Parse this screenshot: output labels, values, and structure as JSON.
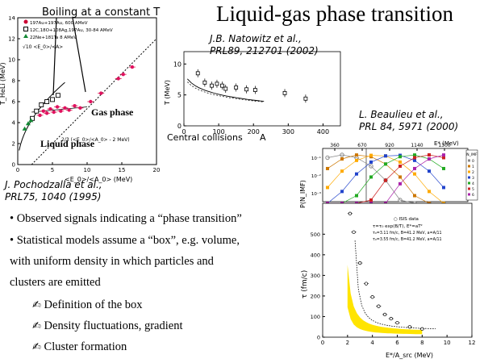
{
  "slide": {
    "title": "Liquid-gas phase transition",
    "boiling_label": "Boiling at a constant T",
    "gas_label": "Gas phase",
    "liquid_label": "Liquid phase",
    "central_label": "Central collisions",
    "bullets": [
      "• Observed signals indicating a “phase transition”",
      "• Statistical models assume a “box”, e.g. volume,",
      "with uniform density in which particles and",
      "clusters are emitted"
    ],
    "subpoints": [
      "Definition of the box",
      "Density fluctuations, gradient",
      "Cluster formation"
    ],
    "subpoint_glyph": "✍"
  },
  "citations": {
    "natowitz_line1": "J.B. Natowitz et al.,",
    "natowitz_line2": "PRL89, 212701 (2002)",
    "beaulieu_line1": "L. Beaulieu et al.,",
    "beaulieu_line2": "PRL 84, 5971 (2000)",
    "pochodzalla_line1": "J. Pochodzalla et al.,",
    "pochodzalla_line2": "PRL75, 1040 (1995)"
  },
  "chart_data": [
    {
      "type": "scatter",
      "name_ref": "caloric-curve",
      "xlabel": "<E_0>/<A_0> (MeV)",
      "ylabel": "T_HeLi (MeV)",
      "xlim": [
        0,
        20
      ],
      "ylim": [
        0,
        14
      ],
      "xticks": [
        "0",
        "5",
        "10",
        "15",
        "20"
      ],
      "yticks": [
        "0",
        "2",
        "4",
        "6",
        "8",
        "10",
        "12",
        "14"
      ],
      "legend": [
        "197Au+197Au, 600 AMeV",
        "12C,18O+108Ag,197Au, 30-84 AMeV",
        "22Ne+181Ta 8 AMeV"
      ],
      "formula_top": "√10 <E_0>/<A>",
      "formula_bottom": "2/3 (<E_0>/<A_0> - 2 MeV)",
      "red_points": [
        [
          3.2,
          4.7
        ],
        [
          3.7,
          5.1
        ],
        [
          4.2,
          4.9
        ],
        [
          4.7,
          5.3
        ],
        [
          5.2,
          5.0
        ],
        [
          5.7,
          5.5
        ],
        [
          6.2,
          5.1
        ],
        [
          6.8,
          5.4
        ],
        [
          7.4,
          5.2
        ],
        [
          8.2,
          5.6
        ],
        [
          9.0,
          5.4
        ],
        [
          10.5,
          6.0
        ],
        [
          12.0,
          6.8
        ],
        [
          14.5,
          8.2
        ],
        [
          15.2,
          8.6
        ],
        [
          16.5,
          9.3
        ]
      ],
      "open_points": [
        [
          2.1,
          4.4
        ],
        [
          2.7,
          5.1
        ],
        [
          3.4,
          5.7
        ],
        [
          4.2,
          6.0
        ],
        [
          5.0,
          6.2
        ],
        [
          5.8,
          6.6
        ]
      ],
      "green_points": [
        [
          1.0,
          3.4
        ],
        [
          1.5,
          3.9
        ],
        [
          1.9,
          4.2
        ]
      ]
    },
    {
      "type": "scatter",
      "name_ref": "natowitz-temperature",
      "xlabel": "A",
      "ylabel": "T (MeV)",
      "xlim": [
        0,
        450
      ],
      "ylim": [
        0,
        12
      ],
      "xticks": [
        "0",
        "100",
        "200",
        "300",
        "400"
      ],
      "yticks": [
        "0",
        "5",
        "10"
      ],
      "points": [
        [
          40,
          8.5
        ],
        [
          60,
          7.0
        ],
        [
          80,
          6.5
        ],
        [
          95,
          6.8
        ],
        [
          110,
          6.5
        ],
        [
          120,
          6.0
        ],
        [
          150,
          6.2
        ],
        [
          180,
          5.9
        ],
        [
          205,
          5.8
        ],
        [
          290,
          5.3
        ],
        [
          350,
          4.4
        ]
      ]
    },
    {
      "type": "line",
      "name_ref": "beaulieu-multiplicity",
      "xlabel": "E*/A_src (MeV)",
      "ylabel": "P(N_IMF)",
      "ylabel_bottom": "τ (fm/c)",
      "top_xlabel": "E* (MeV)",
      "top_ticks": [
        "360",
        "670",
        "920",
        "1140",
        "1300"
      ],
      "bottom_xticks": [
        "0",
        "2",
        "4",
        "6",
        "8",
        "10",
        "12"
      ],
      "tau_ticks": [
        "0",
        "100",
        "200",
        "300",
        "400",
        "500"
      ],
      "p_ticks": [
        "10⁻¹",
        "10⁻²",
        "10⁻³"
      ],
      "legend_header": "N_IMF",
      "legend_items": [
        "0",
        "1",
        "2",
        "3",
        "4",
        "5",
        "6"
      ],
      "annotation_lines": [
        "○ ISIS data",
        "τ=τ₀ exp(B/T), E*=aT²",
        "τ₀=3.11 fm/c, B=41.2 MeV, a=A/11",
        "τ₀=3.55 fm/c, B=41.2 MeV, a=A/11"
      ],
      "tau_points": [
        [
          2.2,
          600
        ],
        [
          2.5,
          510
        ],
        [
          3.0,
          360
        ],
        [
          3.5,
          260
        ],
        [
          4.0,
          195
        ],
        [
          4.5,
          150
        ],
        [
          5.0,
          110
        ],
        [
          5.5,
          90
        ],
        [
          6.0,
          70
        ],
        [
          7.0,
          50
        ],
        [
          8.0,
          40
        ]
      ]
    }
  ]
}
